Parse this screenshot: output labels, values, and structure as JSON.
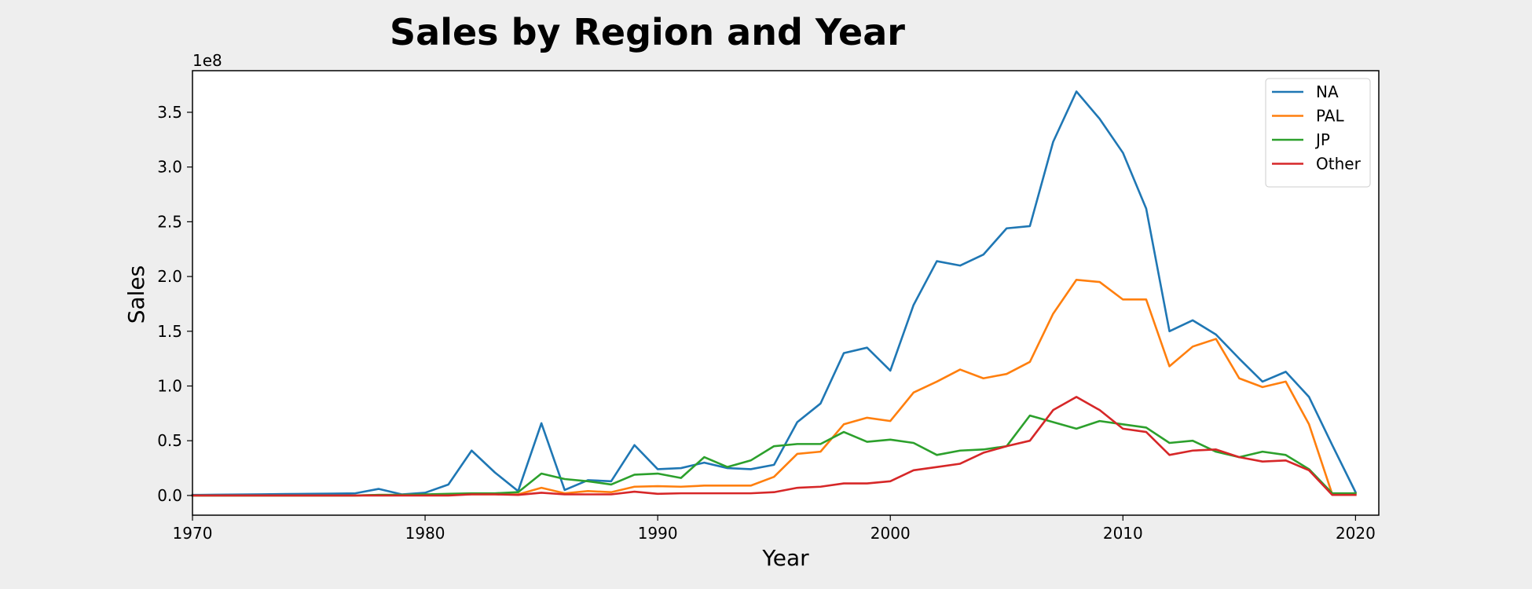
{
  "chart_data": {
    "type": "line",
    "title": "Sales by Region and Year",
    "xlabel": "Year",
    "ylabel": "Sales",
    "y_offset_label": "1e8",
    "xlim": [
      1970,
      2021
    ],
    "ylim": [
      -0.18,
      3.88
    ],
    "y_unit_scale": 100000000,
    "xticks": [
      1970,
      1980,
      1990,
      2000,
      2010,
      2020
    ],
    "xtick_labels": [
      "1970",
      "1980",
      "1990",
      "2000",
      "2010",
      "2020"
    ],
    "yticks": [
      0.0,
      0.5,
      1.0,
      1.5,
      2.0,
      2.5,
      3.0,
      3.5
    ],
    "ytick_labels": [
      "0.0",
      "0.5",
      "1.0",
      "1.5",
      "2.0",
      "2.5",
      "3.0",
      "3.5"
    ],
    "grid": false,
    "legend_position": "top-right",
    "x": [
      1970,
      1971,
      1972,
      1973,
      1974,
      1975,
      1976,
      1977,
      1978,
      1979,
      1980,
      1981,
      1982,
      1983,
      1984,
      1985,
      1986,
      1987,
      1988,
      1989,
      1990,
      1991,
      1992,
      1993,
      1994,
      1995,
      1996,
      1997,
      1998,
      1999,
      2000,
      2001,
      2002,
      2003,
      2004,
      2005,
      2006,
      2007,
      2008,
      2009,
      2010,
      2011,
      2012,
      2013,
      2014,
      2015,
      2016,
      2017,
      2018,
      2019,
      2020
    ],
    "series": [
      {
        "name": "NA",
        "color": "#1f77b4",
        "values": [
          0.005,
          0.007,
          0.009,
          0.011,
          0.013,
          0.015,
          0.017,
          0.02,
          0.06,
          0.01,
          0.025,
          0.1,
          0.41,
          0.21,
          0.04,
          0.66,
          0.05,
          0.14,
          0.13,
          0.46,
          0.24,
          0.25,
          0.3,
          0.25,
          0.24,
          0.28,
          0.67,
          0.84,
          1.3,
          1.35,
          1.14,
          1.74,
          2.14,
          2.1,
          2.2,
          2.44,
          2.46,
          3.23,
          3.69,
          3.44,
          3.13,
          2.62,
          1.5,
          1.6,
          1.47,
          1.25,
          1.04,
          1.13,
          0.9,
          0.46,
          0.03
        ]
      },
      {
        "name": "PAL",
        "color": "#ff7f0e",
        "values": [
          0.0,
          0.0,
          0.0,
          0.0,
          0.0,
          0.0,
          0.0,
          0.0,
          0.005,
          0.005,
          0.005,
          0.005,
          0.01,
          0.01,
          0.01,
          0.07,
          0.02,
          0.04,
          0.03,
          0.08,
          0.085,
          0.08,
          0.09,
          0.09,
          0.09,
          0.17,
          0.38,
          0.4,
          0.65,
          0.71,
          0.68,
          0.94,
          1.04,
          1.15,
          1.07,
          1.11,
          1.22,
          1.66,
          1.97,
          1.95,
          1.79,
          1.79,
          1.18,
          1.36,
          1.43,
          1.07,
          0.99,
          1.04,
          0.65,
          0.01,
          0.02
        ]
      },
      {
        "name": "JP",
        "color": "#2ca02c",
        "values": [
          0.0,
          0.0,
          0.0,
          0.0,
          0.0,
          0.0,
          0.0,
          0.0,
          0.005,
          0.005,
          0.01,
          0.015,
          0.02,
          0.02,
          0.03,
          0.2,
          0.15,
          0.13,
          0.1,
          0.19,
          0.2,
          0.16,
          0.35,
          0.26,
          0.32,
          0.45,
          0.47,
          0.47,
          0.58,
          0.49,
          0.51,
          0.48,
          0.37,
          0.41,
          0.42,
          0.45,
          0.73,
          0.67,
          0.61,
          0.68,
          0.65,
          0.62,
          0.48,
          0.5,
          0.4,
          0.35,
          0.4,
          0.37,
          0.24,
          0.02,
          0.02
        ]
      },
      {
        "name": "Other",
        "color": "#d62728",
        "values": [
          0.0,
          0.0,
          0.0,
          0.0,
          0.0,
          0.0,
          0.0,
          0.0,
          0.0,
          0.0,
          0.0,
          0.0,
          0.01,
          0.01,
          0.005,
          0.025,
          0.01,
          0.01,
          0.01,
          0.035,
          0.015,
          0.02,
          0.02,
          0.02,
          0.02,
          0.03,
          0.07,
          0.08,
          0.11,
          0.11,
          0.13,
          0.23,
          0.26,
          0.29,
          0.39,
          0.45,
          0.5,
          0.78,
          0.9,
          0.78,
          0.61,
          0.58,
          0.37,
          0.41,
          0.42,
          0.35,
          0.31,
          0.32,
          0.23,
          0.005,
          0.005
        ]
      }
    ]
  }
}
